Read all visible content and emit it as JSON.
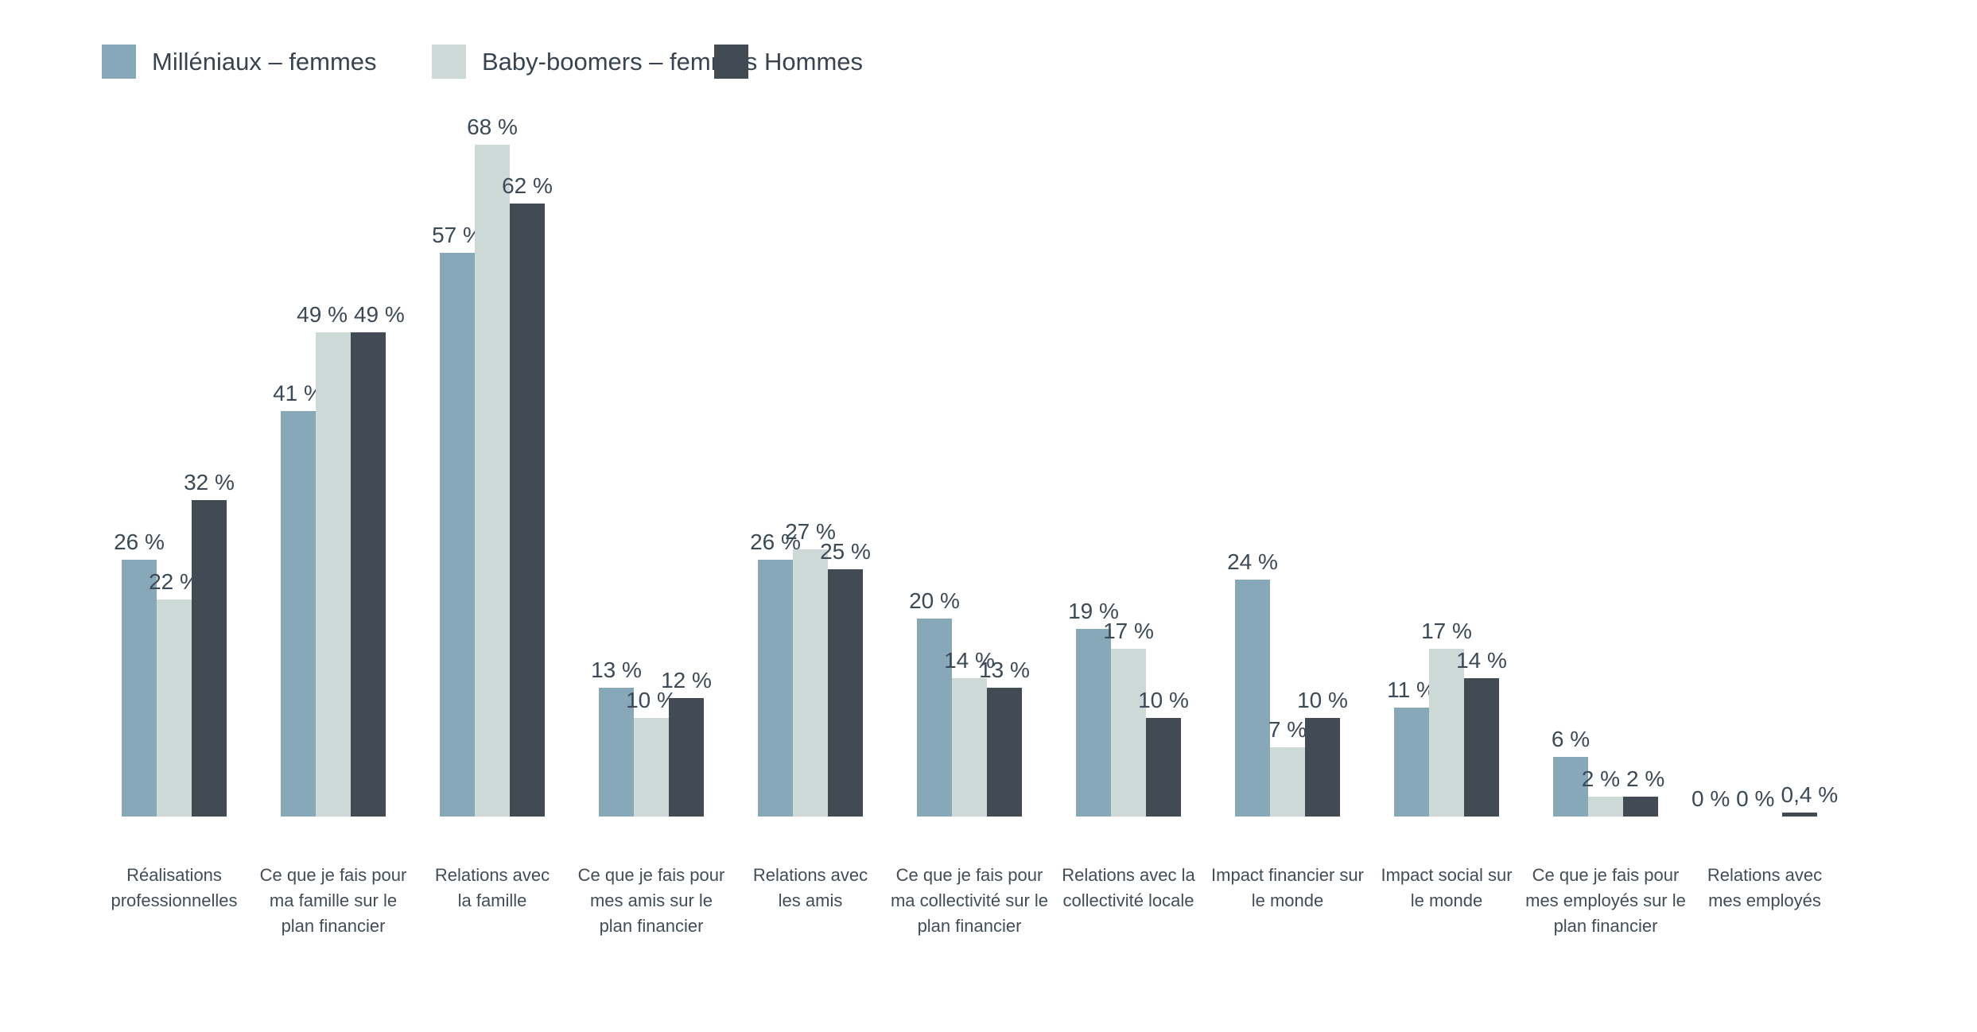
{
  "chart_data": {
    "type": "bar",
    "title": "",
    "unit": "%",
    "grid": false,
    "legend_position": "top-left",
    "ylim": [
      0,
      70
    ],
    "categories": [
      "Réalisations\nprofessionnelles",
      "Ce que je fais pour\nma famille sur le\nplan financier",
      "Relations avec\nla famille",
      "Ce que je fais pour\nmes amis sur le\nplan financier",
      "Relations avec\nles amis",
      "Ce que je fais pour\nma collectivité sur le\nplan financier",
      "Relations avec la\ncollectivité locale",
      "Impact financier sur\nle monde",
      "Impact social sur\nle monde",
      "Ce que je fais pour\nmes employés sur le\nplan financier",
      "Relations avec\nmes employés"
    ],
    "series": [
      {
        "name": "Milléniaux – femmes",
        "color": "#86a8b9",
        "values": [
          26,
          41,
          57,
          13,
          26,
          20,
          19,
          24,
          11,
          6,
          0
        ],
        "labels": [
          "26 %",
          "41 %",
          "57 %",
          "13 %",
          "26 %",
          "20 %",
          "19 %",
          "24 %",
          "11 %",
          "6 %",
          "0 %"
        ]
      },
      {
        "name": "Baby-boomers – femmes",
        "color": "#cdd9d7",
        "values": [
          22,
          49,
          68,
          10,
          27,
          14,
          17,
          7,
          17,
          2,
          0
        ],
        "labels": [
          "22 %",
          "49 %",
          "68 %",
          "10 %",
          "27 %",
          "14 %",
          "17 %",
          "7 %",
          "17 %",
          "2 %",
          "0 %"
        ]
      },
      {
        "name": "Hommes",
        "color": "#424b53",
        "values": [
          32,
          49,
          62,
          12,
          25,
          13,
          10,
          10,
          14,
          2,
          0.4
        ],
        "labels": [
          "32 %",
          "49 %",
          "62 %",
          "12 %",
          "25 %",
          "13 %",
          "10 %",
          "10 %",
          "14 %",
          "2 %",
          "0,4 %"
        ]
      }
    ],
    "value_text_color": "#3c4956",
    "category_text_color": "#424d57",
    "legend_text_color": "#394450",
    "background_color": "#ffffff"
  }
}
